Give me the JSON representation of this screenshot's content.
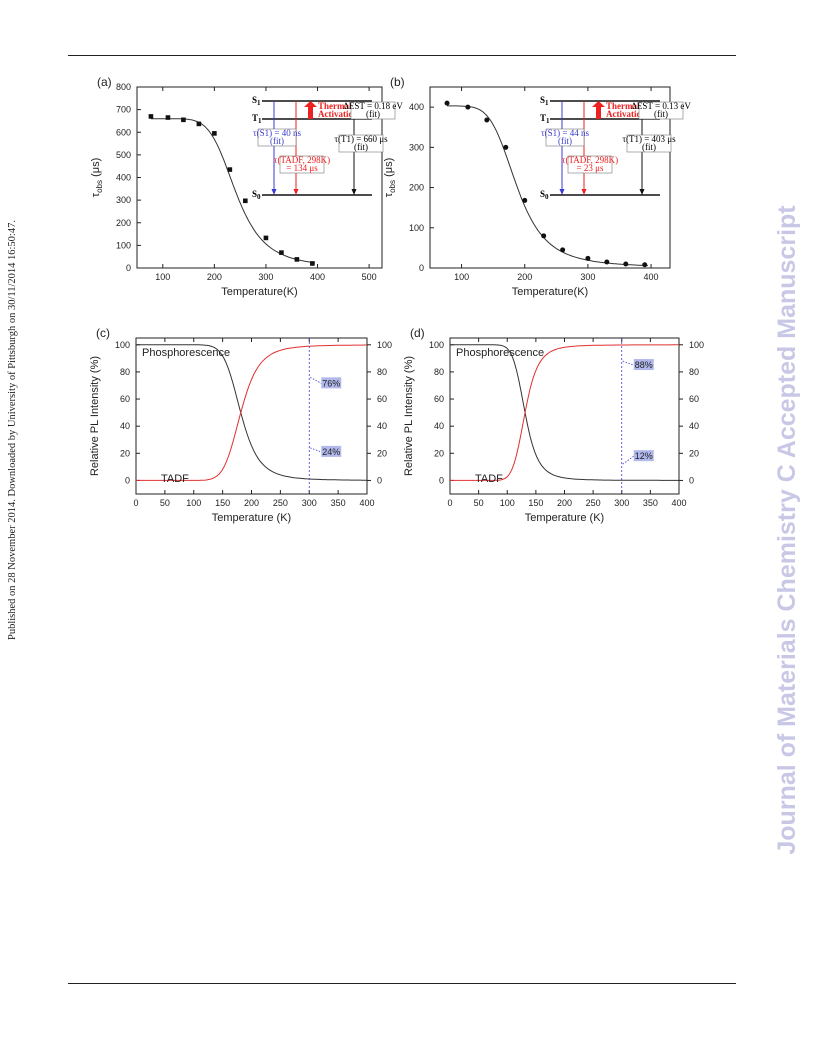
{
  "header_text": "Published on 28 November 2014. Downloaded by University of Pittsburgh on 30/11/2014 16:50:47.",
  "watermark": "Journal of Materials Chemistry C Accepted Manuscript",
  "colors": {
    "tadf": "#e03030",
    "phos": "#333333",
    "blue": "#3a3ad0",
    "highlight": "#b0b8ec",
    "thermal": "#ee2020"
  },
  "chart_data": [
    {
      "type": "scatter",
      "panel": "(a)",
      "xlabel": "Temperature(K)",
      "ylabel": "τobs (μs)",
      "xlim": [
        50,
        525
      ],
      "ylim": [
        0,
        800
      ],
      "xticks": [
        100,
        200,
        300,
        400,
        500
      ],
      "yticks": [
        0,
        100,
        200,
        300,
        400,
        500,
        600,
        700,
        800
      ],
      "marker": "square",
      "points": [
        [
          77,
          670
        ],
        [
          110,
          665
        ],
        [
          140,
          655
        ],
        [
          170,
          637
        ],
        [
          200,
          595
        ],
        [
          230,
          435
        ],
        [
          260,
          297
        ],
        [
          300,
          133
        ],
        [
          330,
          68
        ],
        [
          360,
          38
        ],
        [
          390,
          20
        ]
      ],
      "fit_curve": {
        "tau_T1": 660,
        "tau_S1": 0.04,
        "dE_eV": 0.18
      },
      "inset": {
        "s1": "S1",
        "t1": "T1",
        "s0": "S0",
        "thermal_line1": "Thermal",
        "thermal_line2": "Activation",
        "de_line1": "ΔEST = 0.18 eV",
        "de_line2": "(fit)",
        "s1_life_line1": "τ(S1) = 40 ns",
        "s1_life_line2": "(fit)",
        "t1_life_line1": "τ(T1) = 660 μs",
        "t1_life_line2": "(fit)",
        "tadf_life_line1": "τ(TADF, 298K)",
        "tadf_life_line2": "= 134 μs"
      }
    },
    {
      "type": "scatter",
      "panel": "(b)",
      "xlabel": "Temperature(K)",
      "ylabel": "τobs (μs)",
      "xlim": [
        50,
        430
      ],
      "ylim": [
        0,
        450
      ],
      "xticks": [
        100,
        200,
        300,
        400
      ],
      "yticks": [
        0,
        100,
        200,
        300,
        400
      ],
      "marker": "circle",
      "points": [
        [
          77,
          410
        ],
        [
          110,
          400
        ],
        [
          140,
          368
        ],
        [
          170,
          300
        ],
        [
          200,
          168
        ],
        [
          230,
          80
        ],
        [
          260,
          45
        ],
        [
          300,
          24
        ],
        [
          330,
          15
        ],
        [
          360,
          10
        ],
        [
          390,
          8
        ]
      ],
      "fit_curve": {
        "tau_T1": 403,
        "tau_S1": 0.044,
        "dE_eV": 0.13
      },
      "inset": {
        "s1": "S1",
        "t1": "T1",
        "s0": "S0",
        "thermal_line1": "Thermal",
        "thermal_line2": "Activation",
        "de_line1": "ΔEST = 0.13 eV",
        "de_line2": "(fit)",
        "s1_life_line1": "τ(S1) = 44 ns",
        "s1_life_line2": "(fit)",
        "t1_life_line1": "τ(T1) = 403 μs",
        "t1_life_line2": "(fit)",
        "tadf_life_line1": "τ(TADF, 298K)",
        "tadf_life_line2": "= 23 μs"
      }
    },
    {
      "type": "line",
      "panel": "(c)",
      "xlabel": "Temperature (K)",
      "ylabel": "Relative PL Intensity (%)",
      "xlim": [
        0,
        400
      ],
      "ylim": [
        -10,
        105
      ],
      "xticks": [
        0,
        50,
        100,
        150,
        200,
        250,
        300,
        350,
        400
      ],
      "yticks": [
        0,
        20,
        40,
        60,
        80,
        100
      ],
      "series": [
        {
          "name": "Phosphorescence",
          "color": "phos",
          "dE_eV": 0.18
        },
        {
          "name": "TADF",
          "color": "tadf",
          "dE_eV": 0.18
        }
      ],
      "marker_x": 300,
      "annotations": [
        {
          "text": "76%",
          "y": 76,
          "dy": 6
        },
        {
          "text": "24%",
          "y": 24,
          "dy": 4
        }
      ]
    },
    {
      "type": "line",
      "panel": "(d)",
      "xlabel": "Temperature (K)",
      "ylabel": "Relative PL Intensity (%)",
      "xlim": [
        0,
        400
      ],
      "ylim": [
        -10,
        105
      ],
      "xticks": [
        0,
        50,
        100,
        150,
        200,
        250,
        300,
        350,
        400
      ],
      "yticks": [
        0,
        20,
        40,
        60,
        80,
        100
      ],
      "series": [
        {
          "name": "Phosphorescence",
          "color": "phos",
          "dE_eV": 0.13
        },
        {
          "name": "TADF",
          "color": "tadf",
          "dE_eV": 0.13
        }
      ],
      "marker_x": 300,
      "annotations": [
        {
          "text": "88%",
          "y": 88,
          "dy": 4
        },
        {
          "text": "12%",
          "y": 12,
          "dy": -8
        }
      ]
    }
  ]
}
